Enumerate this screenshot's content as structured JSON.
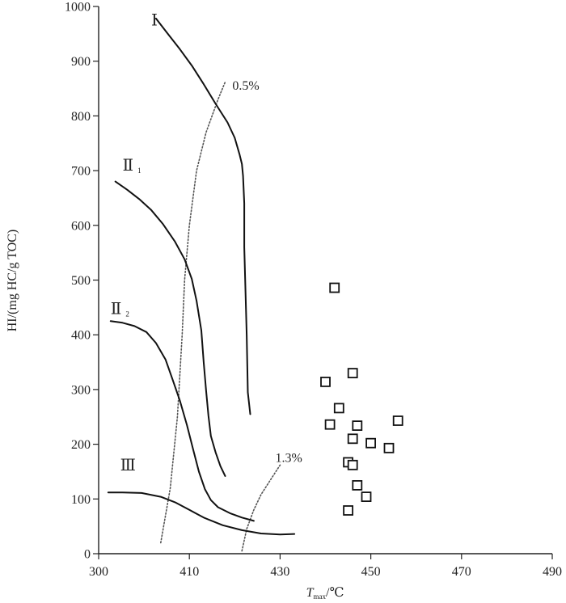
{
  "chart_data": {
    "type": "scatter",
    "title": "",
    "xlabel": {
      "main": "T",
      "sub": "max",
      "unit": "/℃"
    },
    "ylabel": "HI/(mg HC/g TOC)",
    "xlim": [
      300,
      490
    ],
    "ylim": [
      0,
      1000
    ],
    "x_ticks": [
      "300",
      "410",
      "430",
      "450",
      "470",
      "490"
    ],
    "y_ticks": [
      "0",
      "100",
      "200",
      "300",
      "400",
      "500",
      "600",
      "700",
      "800",
      "900",
      "1000"
    ],
    "grid": false,
    "curves": [
      {
        "label": "Ⅰ",
        "sub": "",
        "label_at": [
          322,
          965
        ],
        "points": [
          [
            324,
            978
          ],
          [
            329,
            950
          ],
          [
            334,
            922
          ],
          [
            339,
            892
          ],
          [
            344,
            858
          ],
          [
            349,
            822
          ],
          [
            354,
            788
          ],
          [
            357,
            760
          ],
          [
            359,
            730
          ],
          [
            360,
            712
          ],
          [
            360.5,
            690
          ],
          [
            361,
            640
          ],
          [
            361,
            560
          ],
          [
            361.5,
            480
          ],
          [
            362,
            400
          ],
          [
            362.3,
            340
          ],
          [
            362.5,
            295
          ],
          [
            363.5,
            255
          ]
        ]
      },
      {
        "label": "Ⅱ",
        "sub": "1",
        "label_at": [
          310,
          700
        ],
        "points": [
          [
            307,
            680
          ],
          [
            312,
            665
          ],
          [
            317,
            648
          ],
          [
            322,
            628
          ],
          [
            327,
            602
          ],
          [
            332,
            570
          ],
          [
            336,
            538
          ],
          [
            339,
            502
          ],
          [
            341,
            462
          ],
          [
            343,
            408
          ],
          [
            344,
            350
          ],
          [
            345,
            298
          ],
          [
            346,
            252
          ],
          [
            347,
            215
          ],
          [
            349,
            185
          ],
          [
            351,
            160
          ],
          [
            353,
            142
          ]
        ]
      },
      {
        "label": "Ⅱ",
        "sub": "2",
        "label_at": [
          305,
          438
        ],
        "points": [
          [
            305,
            425
          ],
          [
            310,
            422
          ],
          [
            315,
            416
          ],
          [
            320,
            405
          ],
          [
            324,
            385
          ],
          [
            328,
            355
          ],
          [
            331,
            318
          ],
          [
            334,
            280
          ],
          [
            337,
            235
          ],
          [
            339.5,
            192
          ],
          [
            342,
            150
          ],
          [
            344.5,
            118
          ],
          [
            347,
            98
          ],
          [
            350,
            85
          ],
          [
            355,
            74
          ],
          [
            360,
            66
          ],
          [
            365,
            60
          ]
        ]
      },
      {
        "label": "Ⅲ",
        "sub": "",
        "label_at": [
          309,
          152
        ],
        "points": [
          [
            304,
            112
          ],
          [
            310,
            112
          ],
          [
            318,
            111
          ],
          [
            326,
            104
          ],
          [
            332,
            94
          ],
          [
            338,
            80
          ],
          [
            344,
            66
          ],
          [
            352,
            52
          ],
          [
            360,
            43
          ],
          [
            368,
            37
          ],
          [
            376,
            35
          ],
          [
            382,
            36
          ]
        ]
      }
    ],
    "iso_lines": [
      {
        "label": "0.5%",
        "label_at": [
          356,
          848
        ],
        "points": [
          [
            326,
            20
          ],
          [
            330,
            120
          ],
          [
            333,
            250
          ],
          [
            335,
            400
          ],
          [
            336,
            500
          ],
          [
            338,
            600
          ],
          [
            341,
            700
          ],
          [
            345,
            770
          ],
          [
            350,
            830
          ],
          [
            353,
            862
          ]
        ]
      },
      {
        "label": "1.3%",
        "label_at": [
          374,
          168
        ],
        "points": [
          [
            360,
            5
          ],
          [
            362,
            45
          ],
          [
            365,
            80
          ],
          [
            368,
            108
          ],
          [
            372,
            135
          ],
          [
            376,
            162
          ]
        ]
      }
    ],
    "series": [
      {
        "points": [
          [
            442,
            486
          ],
          [
            440,
            314
          ],
          [
            443,
            266
          ],
          [
            441,
            236
          ],
          [
            446,
            330
          ],
          [
            447,
            234
          ],
          [
            446,
            210
          ],
          [
            450,
            202
          ],
          [
            445,
            167
          ],
          [
            446,
            162
          ],
          [
            447,
            125
          ],
          [
            449,
            104
          ],
          [
            445,
            79
          ],
          [
            454,
            193
          ],
          [
            456,
            243
          ]
        ]
      }
    ]
  }
}
